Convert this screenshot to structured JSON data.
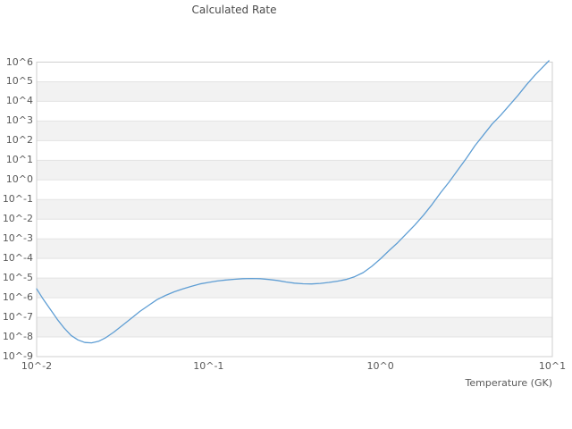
{
  "title": "Calculated Rate",
  "axes": {
    "x_label": "Temperature (GK)"
  },
  "colors": {
    "line": "#5f9ed4",
    "band_light": "#ffffff",
    "band_dark": "#f2f2f2",
    "grid": "#e3e3e3",
    "frame": "#cfcfcf",
    "text": "#595959",
    "title_text": "#4a4a4a",
    "background": "#ffffff"
  },
  "chart_data": {
    "type": "line",
    "title": "Calculated Rate",
    "xlabel": "Temperature (GK)",
    "ylabel": "",
    "x_scale": "log10",
    "y_scale": "log10",
    "xlim_log10": [
      -2,
      1
    ],
    "ylim_log10": [
      -9,
      6
    ],
    "grid": "horizontal-only",
    "legend": "none",
    "x_ticks": [
      {
        "label": "10^-2",
        "log10": -2
      },
      {
        "label": "10^-1",
        "log10": -1
      },
      {
        "label": "10^0",
        "log10": 0
      },
      {
        "label": "10^1",
        "log10": 1
      }
    ],
    "y_ticks": [
      {
        "label": "10^6",
        "log10": 6
      },
      {
        "label": "10^5",
        "log10": 5
      },
      {
        "label": "10^4",
        "log10": 4
      },
      {
        "label": "10^3",
        "log10": 3
      },
      {
        "label": "10^2",
        "log10": 2
      },
      {
        "label": "10^1",
        "log10": 1
      },
      {
        "label": "10^0",
        "log10": 0
      },
      {
        "label": "10^-1",
        "log10": -1
      },
      {
        "label": "10^-2",
        "log10": -2
      },
      {
        "label": "10^-3",
        "log10": -3
      },
      {
        "label": "10^-4",
        "log10": -4
      },
      {
        "label": "10^-5",
        "log10": -5
      },
      {
        "label": "10^-6",
        "log10": -6
      },
      {
        "label": "10^-7",
        "log10": -7
      },
      {
        "label": "10^-8",
        "log10": -8
      },
      {
        "label": "10^-9",
        "log10": -9
      }
    ],
    "series": [
      {
        "name": "calculated-rate",
        "color": "#5f9ed4",
        "points_log10": [
          [
            -2.0,
            -5.55
          ],
          [
            -1.96,
            -6.1
          ],
          [
            -1.92,
            -6.6
          ],
          [
            -1.88,
            -7.1
          ],
          [
            -1.84,
            -7.55
          ],
          [
            -1.8,
            -7.92
          ],
          [
            -1.76,
            -8.15
          ],
          [
            -1.72,
            -8.28
          ],
          [
            -1.68,
            -8.3
          ],
          [
            -1.64,
            -8.22
          ],
          [
            -1.6,
            -8.05
          ],
          [
            -1.55,
            -7.75
          ],
          [
            -1.5,
            -7.4
          ],
          [
            -1.45,
            -7.05
          ],
          [
            -1.4,
            -6.7
          ],
          [
            -1.35,
            -6.4
          ],
          [
            -1.3,
            -6.1
          ],
          [
            -1.25,
            -5.88
          ],
          [
            -1.2,
            -5.7
          ],
          [
            -1.15,
            -5.55
          ],
          [
            -1.1,
            -5.42
          ],
          [
            -1.05,
            -5.3
          ],
          [
            -1.0,
            -5.22
          ],
          [
            -0.95,
            -5.15
          ],
          [
            -0.9,
            -5.1
          ],
          [
            -0.85,
            -5.06
          ],
          [
            -0.8,
            -5.03
          ],
          [
            -0.75,
            -5.02
          ],
          [
            -0.7,
            -5.03
          ],
          [
            -0.65,
            -5.07
          ],
          [
            -0.6,
            -5.12
          ],
          [
            -0.55,
            -5.2
          ],
          [
            -0.5,
            -5.26
          ],
          [
            -0.45,
            -5.29
          ],
          [
            -0.4,
            -5.3
          ],
          [
            -0.35,
            -5.27
          ],
          [
            -0.3,
            -5.22
          ],
          [
            -0.25,
            -5.16
          ],
          [
            -0.2,
            -5.07
          ],
          [
            -0.15,
            -4.93
          ],
          [
            -0.1,
            -4.72
          ],
          [
            -0.05,
            -4.4
          ],
          [
            0.0,
            -4.02
          ],
          [
            0.05,
            -3.6
          ],
          [
            0.1,
            -3.2
          ],
          [
            0.15,
            -2.75
          ],
          [
            0.2,
            -2.3
          ],
          [
            0.25,
            -1.8
          ],
          [
            0.3,
            -1.25
          ],
          [
            0.35,
            -0.65
          ],
          [
            0.4,
            -0.1
          ],
          [
            0.45,
            0.5
          ],
          [
            0.5,
            1.1
          ],
          [
            0.55,
            1.75
          ],
          [
            0.6,
            2.3
          ],
          [
            0.65,
            2.85
          ],
          [
            0.7,
            3.3
          ],
          [
            0.75,
            3.8
          ],
          [
            0.8,
            4.3
          ],
          [
            0.85,
            4.85
          ],
          [
            0.9,
            5.35
          ],
          [
            0.95,
            5.8
          ],
          [
            0.98,
            6.07
          ]
        ]
      }
    ]
  }
}
